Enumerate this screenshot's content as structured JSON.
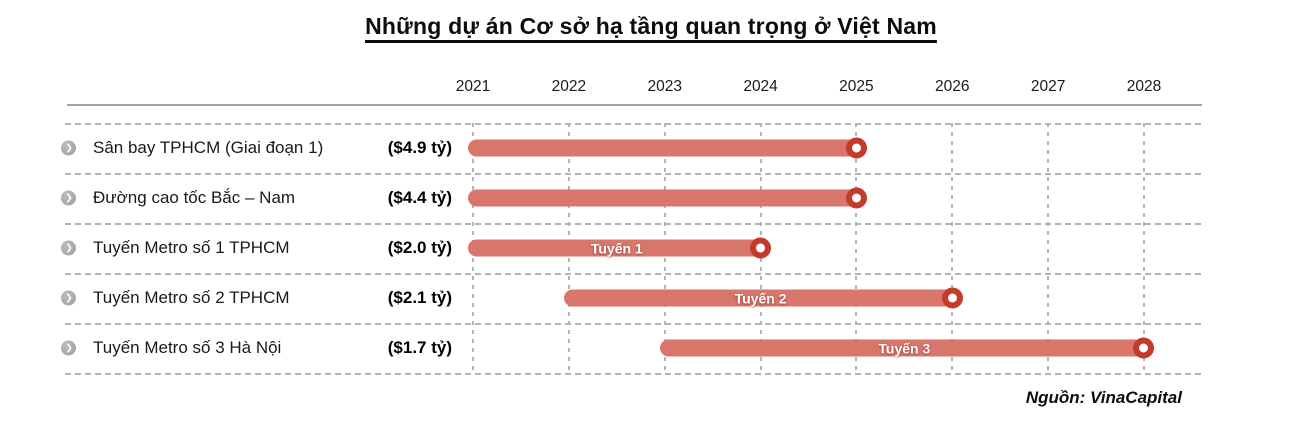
{
  "title": "Những dự án Cơ sở hạ tầng quan trọng ở Việt Nam",
  "source": "Nguồn: VinaCapital",
  "colors": {
    "bar_fill": "#D9766C",
    "marker_ring": "#C43A2B",
    "bullet_gray": "#A6A6A6",
    "gridline": "#B3B3B3"
  },
  "chart_data": {
    "type": "gantt",
    "title": "Những dự án Cơ sở hạ tầng quan trọng ở Việt Nam",
    "x_axis": {
      "years": [
        "2021",
        "2022",
        "2023",
        "2024",
        "2025",
        "2026",
        "2027",
        "2028"
      ],
      "range": [
        2021,
        2028
      ]
    },
    "grid": "dashed",
    "legend": "none",
    "rows": [
      {
        "label": "Sân bay TPHCM (Giai đoạn 1)",
        "cost": "($4.9 tỷ)",
        "start": 2021,
        "end": 2025,
        "bar_label": ""
      },
      {
        "label": "Đường cao tốc Bắc – Nam",
        "cost": "($4.4 tỷ)",
        "start": 2021,
        "end": 2025,
        "bar_label": ""
      },
      {
        "label": "Tuyến Metro số 1 TPHCM",
        "cost": "($2.0 tỷ)",
        "start": 2021,
        "end": 2024,
        "bar_label": "Tuyến 1"
      },
      {
        "label": "Tuyến Metro số 2 TPHCM",
        "cost": "($2.1 tỷ)",
        "start": 2022,
        "end": 2026,
        "bar_label": "Tuyến 2"
      },
      {
        "label": "Tuyến Metro số 3 Hà Nội",
        "cost": "($1.7 tỷ)",
        "start": 2023,
        "end": 2028,
        "bar_label": "Tuyến 3"
      }
    ],
    "source": "Nguồn: VinaCapital"
  }
}
